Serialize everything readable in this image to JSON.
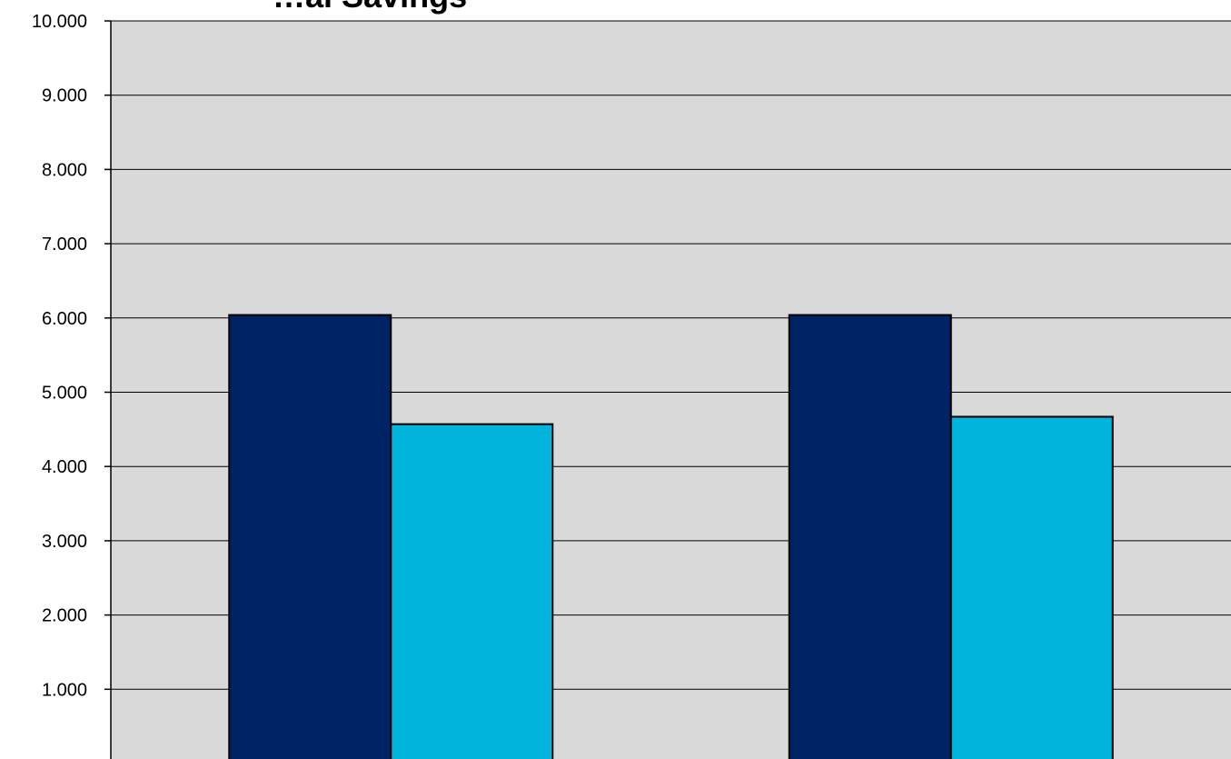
{
  "chart_data": {
    "type": "bar",
    "title": "",
    "title_visible_fragment": "…al Savings",
    "xlabel": "",
    "ylabel": "",
    "ylim": [
      0,
      10000
    ],
    "y_ticks": [
      {
        "value": 1000,
        "label": "1.000"
      },
      {
        "value": 2000,
        "label": "2.000"
      },
      {
        "value": 3000,
        "label": "3.000"
      },
      {
        "value": 4000,
        "label": "4.000"
      },
      {
        "value": 5000,
        "label": "5.000"
      },
      {
        "value": 6000,
        "label": "6.000"
      },
      {
        "value": 7000,
        "label": "7.000"
      },
      {
        "value": 8000,
        "label": "8.000"
      },
      {
        "value": 9000,
        "label": "9.000"
      },
      {
        "value": 10000,
        "label": "10.000"
      }
    ],
    "grid": true,
    "categories": [
      "",
      ""
    ],
    "series": [
      {
        "color": "#002366",
        "values": [
          6040,
          6040
        ]
      },
      {
        "color": "#00B4DC",
        "values": [
          4570,
          4670
        ]
      }
    ],
    "colors": {
      "plot_background": "#D9D9D9",
      "gridline": "#000000",
      "bar_border": "#000000"
    }
  }
}
